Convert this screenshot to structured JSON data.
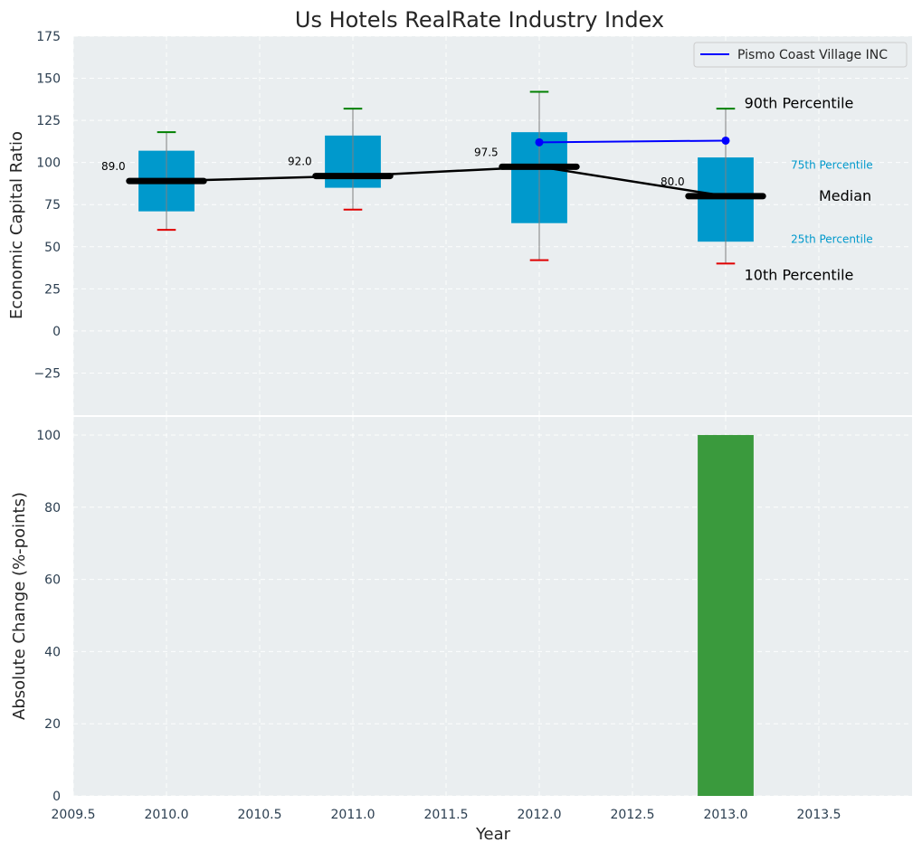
{
  "chart_data": {
    "title": "Us Hotels RealRate Industry Index",
    "xlabel": "Year",
    "xlim": [
      2009.5,
      2014.0
    ],
    "xticks": [
      2009.5,
      2010.0,
      2010.5,
      2011.0,
      2011.5,
      2012.0,
      2012.5,
      2013.0,
      2013.5
    ],
    "xtick_labels": [
      "2009.5",
      "2010.0",
      "2010.5",
      "2011.0",
      "2011.5",
      "2012.0",
      "2012.5",
      "2013.0",
      "2013.5"
    ],
    "grid": true,
    "panels": [
      {
        "type": "box",
        "ylabel": "Economic Capital Ratio",
        "ylim": [
          -50,
          175
        ],
        "yticks": [
          -25,
          0,
          25,
          50,
          75,
          100,
          125,
          150,
          175
        ],
        "ytick_labels": [
          "−25",
          "0",
          "25",
          "50",
          "75",
          "100",
          "125",
          "150",
          "175"
        ],
        "years": [
          2010,
          2011,
          2012,
          2013
        ],
        "p10": [
          60,
          72,
          42,
          40
        ],
        "p25": [
          71,
          85,
          64,
          53
        ],
        "median": [
          89.0,
          92.0,
          97.5,
          80.0
        ],
        "median_labels": [
          "89.0",
          "92.0",
          "97.5",
          "80.0"
        ],
        "p75": [
          107,
          116,
          118,
          103
        ],
        "p90": [
          118,
          132,
          142,
          132
        ],
        "series": [
          {
            "name": "Pismo Coast Village INC",
            "x": [
              2012,
              2013
            ],
            "y": [
              112,
              113
            ],
            "color": "#0000ff"
          }
        ],
        "legend": {
          "position": "upper-right",
          "entries": [
            "Pismo Coast Village INC"
          ]
        },
        "annotations": [
          {
            "text": "90th Percentile",
            "x": 2013.1,
            "y": 135,
            "style": "big"
          },
          {
            "text": "75th Percentile",
            "x": 2013.35,
            "y": 99,
            "style": "small"
          },
          {
            "text": "Median",
            "x": 2013.5,
            "y": 80,
            "style": "big"
          },
          {
            "text": "25th Percentile",
            "x": 2013.35,
            "y": 55,
            "style": "small"
          },
          {
            "text": "10th Percentile",
            "x": 2013.1,
            "y": 33,
            "style": "big"
          }
        ],
        "colors": {
          "box": "#0099cc",
          "median": "#000000",
          "p90_cap": "#008000",
          "p10_cap": "#e00000",
          "whisker": "#808080"
        }
      },
      {
        "type": "bar",
        "ylabel": "Absolute Change (%-points)",
        "ylim": [
          0,
          105
        ],
        "yticks": [
          0,
          20,
          40,
          60,
          80,
          100
        ],
        "ytick_labels": [
          "0",
          "20",
          "40",
          "60",
          "80",
          "100"
        ],
        "x": [
          2013
        ],
        "values": [
          100
        ],
        "color": "#3a9a3d"
      }
    ]
  }
}
